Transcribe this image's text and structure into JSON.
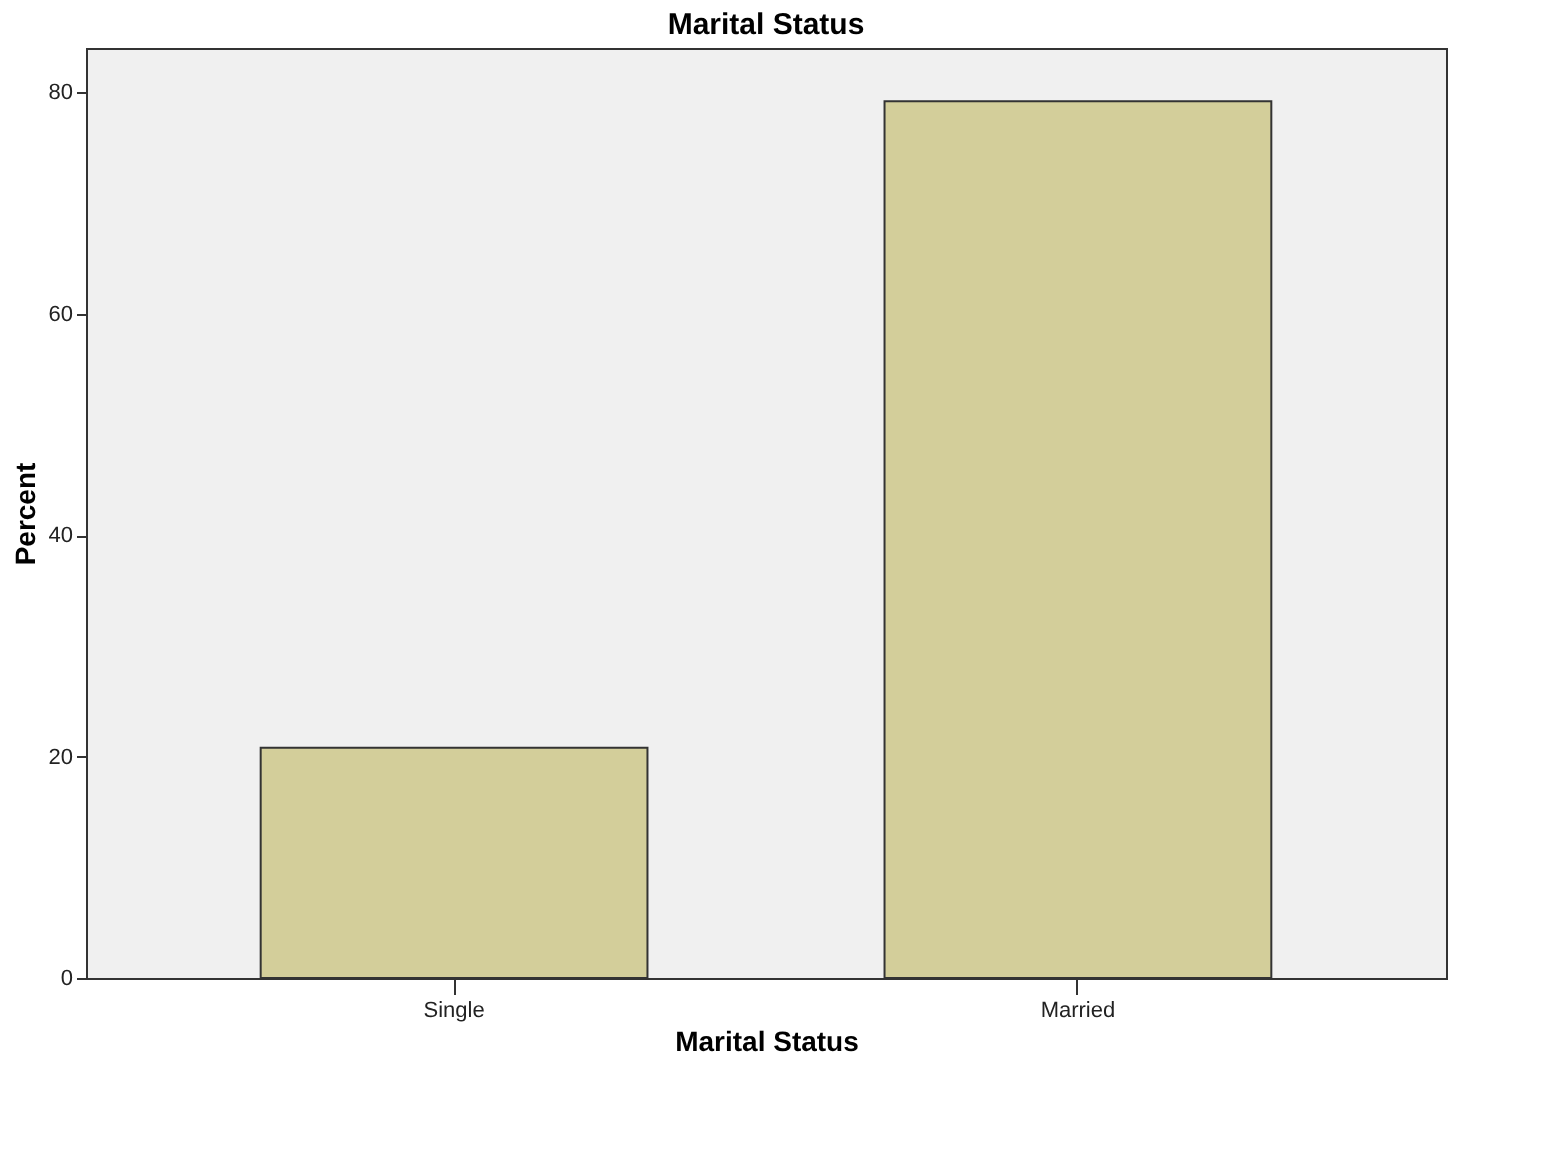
{
  "chart_data": {
    "type": "bar",
    "title": "Marital Status",
    "xlabel": "Marital Status",
    "ylabel": "Percent",
    "categories": [
      "Single",
      "Married"
    ],
    "values": [
      20.8,
      79.2
    ],
    "color": "#d3ce9a",
    "ylim": [
      0,
      84
    ],
    "yticks": [
      0,
      20,
      40,
      60,
      80
    ],
    "grid": false
  }
}
